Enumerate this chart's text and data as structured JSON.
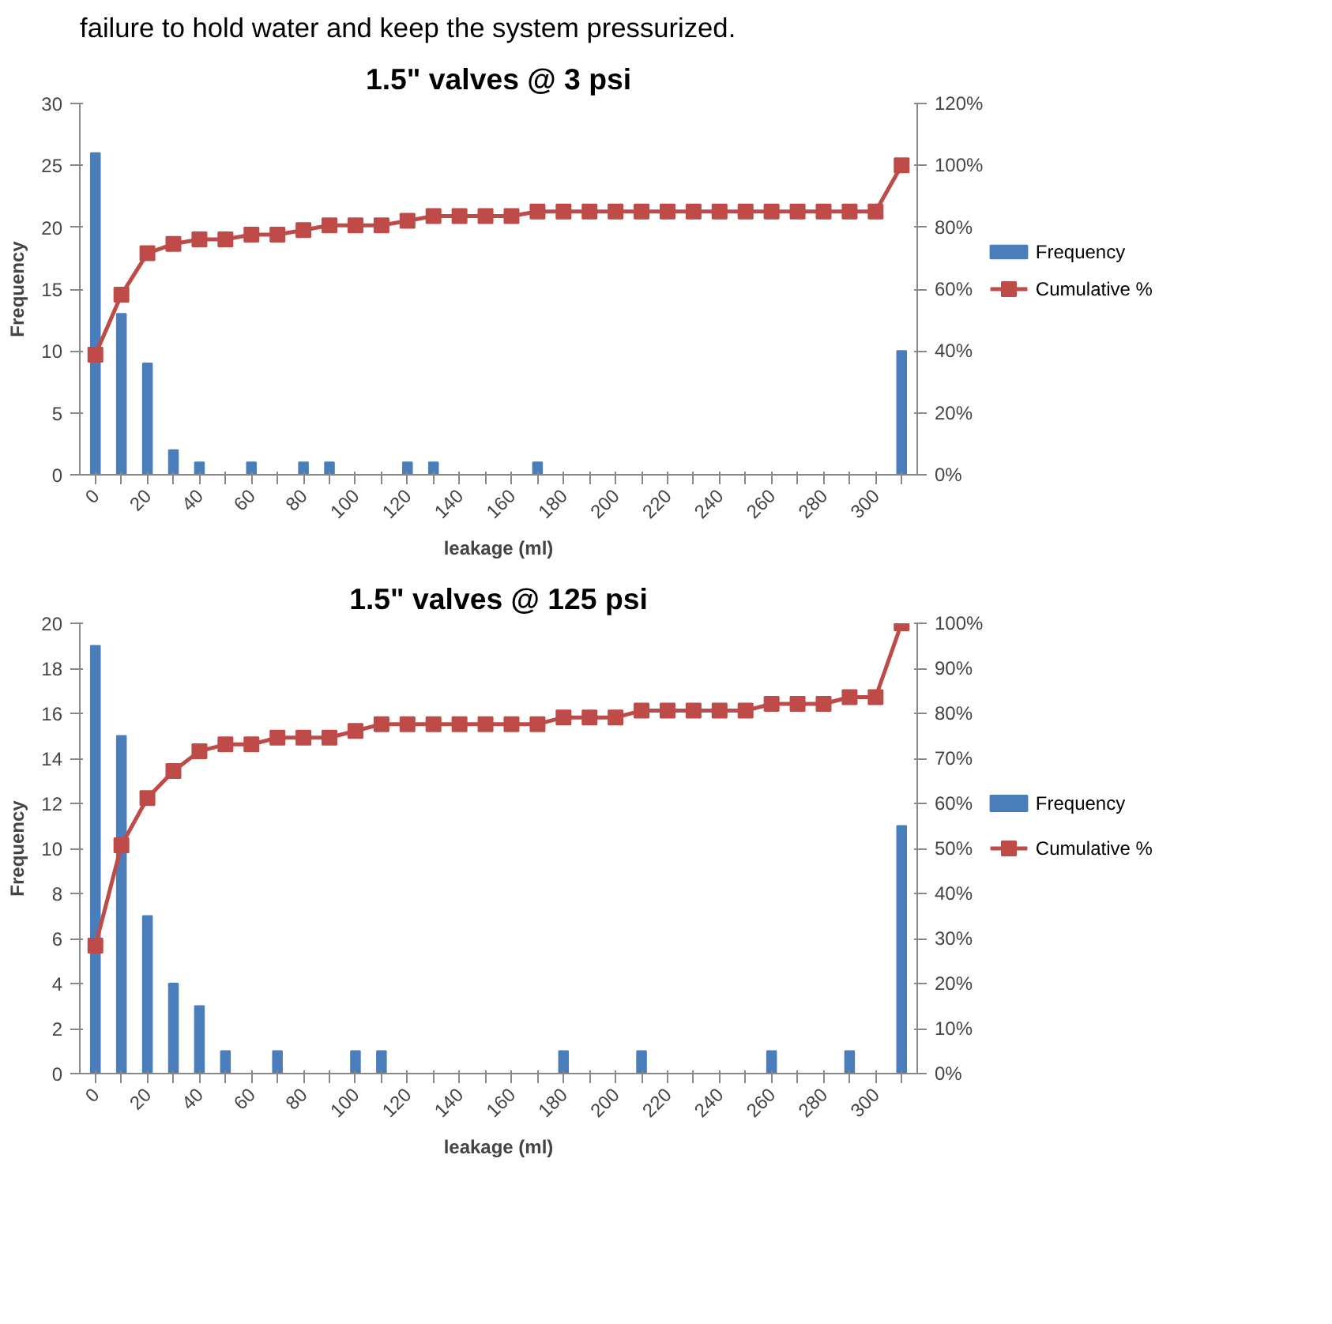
{
  "chart_data": [
    {
      "type": "bar",
      "title": "1.5\" valves @ 3 psi",
      "annotations": [
        "failure to hold water and keep the system pressurized."
      ],
      "xlabel": "leakage (ml)",
      "ylabel": "Frequency",
      "categories": [
        "0",
        null,
        "20",
        null,
        "40",
        null,
        "60",
        null,
        "80",
        null,
        "100",
        null,
        "120",
        null,
        "140",
        null,
        "160",
        null,
        "180",
        null,
        "200",
        null,
        "220",
        null,
        "240",
        null,
        "260",
        null,
        "280",
        null,
        "300",
        null
      ],
      "series": [
        {
          "name": "Frequency",
          "color": "#4a7ebb",
          "values": [
            26,
            13,
            9,
            2,
            1,
            0,
            1,
            0,
            1,
            1,
            0,
            0,
            1,
            1,
            0,
            0,
            0,
            1,
            0,
            0,
            0,
            0,
            0,
            0,
            0,
            0,
            0,
            0,
            0,
            0,
            0,
            10
          ]
        },
        {
          "name": "Cumulative %",
          "type": "line",
          "axis": "y2",
          "color": "#be4b48",
          "marker": "square",
          "values": [
            38.8,
            58.2,
            71.6,
            74.6,
            76.1,
            76.1,
            77.6,
            77.6,
            79.1,
            80.6,
            80.6,
            80.6,
            82.1,
            83.6,
            83.6,
            83.6,
            83.6,
            85.1,
            85.1,
            85.1,
            85.1,
            85.1,
            85.1,
            85.1,
            85.1,
            85.1,
            85.1,
            85.1,
            85.1,
            85.1,
            85.1,
            100
          ]
        }
      ],
      "ylim": [
        0,
        30
      ],
      "yticks": [
        0,
        5,
        10,
        15,
        20,
        25,
        30
      ],
      "y2lim": [
        0,
        120
      ],
      "y2ticks": [
        {
          "value": 0,
          "label": "0%"
        },
        {
          "value": 20,
          "label": "20%"
        },
        {
          "value": 40,
          "label": "40%"
        },
        {
          "value": 60,
          "label": "60%"
        },
        {
          "value": 80,
          "label": "80%"
        },
        {
          "value": 100,
          "label": "100%"
        },
        {
          "value": 120,
          "label": "120%"
        }
      ],
      "legend": "right",
      "grid": false
    },
    {
      "type": "bar",
      "title": "1.5\" valves @ 125 psi",
      "xlabel": "leakage (ml)",
      "ylabel": "Frequency",
      "categories": [
        "0",
        null,
        "20",
        null,
        "40",
        null,
        "60",
        null,
        "80",
        null,
        "100",
        null,
        "120",
        null,
        "140",
        null,
        "160",
        null,
        "180",
        null,
        "200",
        null,
        "220",
        null,
        "240",
        null,
        "260",
        null,
        "280",
        null,
        "300",
        null
      ],
      "series": [
        {
          "name": "Frequency",
          "color": "#4a7ebb",
          "values": [
            19,
            15,
            7,
            4,
            3,
            1,
            0,
            1,
            0,
            0,
            1,
            1,
            0,
            0,
            0,
            0,
            0,
            0,
            1,
            0,
            0,
            1,
            0,
            0,
            0,
            0,
            1,
            0,
            0,
            1,
            0,
            11
          ]
        },
        {
          "name": "Cumulative %",
          "type": "line",
          "axis": "y2",
          "color": "#be4b48",
          "marker": "square",
          "values": [
            28.4,
            50.7,
            61.2,
            67.2,
            71.6,
            73.1,
            73.1,
            74.6,
            74.6,
            74.6,
            76.1,
            77.6,
            77.6,
            77.6,
            77.6,
            77.6,
            77.6,
            77.6,
            79.1,
            79.1,
            79.1,
            80.6,
            80.6,
            80.6,
            80.6,
            80.6,
            82.1,
            82.1,
            82.1,
            83.6,
            83.6,
            100
          ]
        }
      ],
      "ylim": [
        0,
        20
      ],
      "yticks": [
        0,
        2,
        4,
        6,
        8,
        10,
        12,
        14,
        16,
        18,
        20
      ],
      "y2lim": [
        0,
        100
      ],
      "y2ticks": [
        {
          "value": 0,
          "label": "0%"
        },
        {
          "value": 10,
          "label": "10%"
        },
        {
          "value": 20,
          "label": "20%"
        },
        {
          "value": 30,
          "label": "30%"
        },
        {
          "value": 40,
          "label": "40%"
        },
        {
          "value": 50,
          "label": "50%"
        },
        {
          "value": 60,
          "label": "60%"
        },
        {
          "value": 70,
          "label": "70%"
        },
        {
          "value": 80,
          "label": "80%"
        },
        {
          "value": 90,
          "label": "90%"
        },
        {
          "value": 100,
          "label": "100%"
        }
      ],
      "legend": "right",
      "grid": false
    }
  ]
}
